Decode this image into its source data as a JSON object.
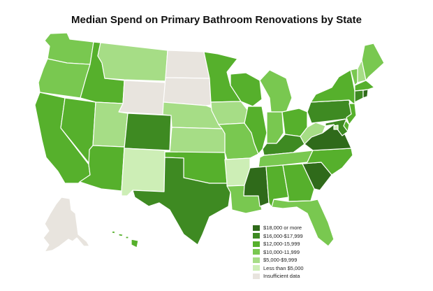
{
  "title": "Median Spend on Primary Bathroom Renovations by State",
  "colors": {
    "c18k": "#2f6a1a",
    "c16k": "#3e8a22",
    "c12k": "#56b02c",
    "c10k": "#79c850",
    "c5k": "#a6dd86",
    "c_lt5k": "#cdeeb6",
    "insufficient": "#e8e4de"
  },
  "legend": [
    {
      "key": "c18k",
      "label": "$18,000 or more"
    },
    {
      "key": "c16k",
      "label": "$16,000-$17,999"
    },
    {
      "key": "c12k",
      "label": "$12,000-15,999"
    },
    {
      "key": "c10k",
      "label": "$10,000-11,999"
    },
    {
      "key": "c5k",
      "label": "$5,000-$9,999"
    },
    {
      "key": "c_lt5k",
      "label": "Less than $5,000"
    },
    {
      "key": "insufficient",
      "label": "Insufficient data"
    }
  ],
  "states": [
    {
      "id": "WA",
      "cat": "c10k"
    },
    {
      "id": "OR",
      "cat": "c10k"
    },
    {
      "id": "CA",
      "cat": "c12k"
    },
    {
      "id": "NV",
      "cat": "c12k"
    },
    {
      "id": "ID",
      "cat": "c12k"
    },
    {
      "id": "MT",
      "cat": "c5k"
    },
    {
      "id": "WY",
      "cat": "insufficient"
    },
    {
      "id": "UT",
      "cat": "c5k"
    },
    {
      "id": "AZ",
      "cat": "c12k"
    },
    {
      "id": "CO",
      "cat": "c16k"
    },
    {
      "id": "NM",
      "cat": "c_lt5k"
    },
    {
      "id": "ND",
      "cat": "insufficient"
    },
    {
      "id": "SD",
      "cat": "insufficient"
    },
    {
      "id": "NE",
      "cat": "c5k"
    },
    {
      "id": "KS",
      "cat": "c5k"
    },
    {
      "id": "OK",
      "cat": "c12k"
    },
    {
      "id": "TX",
      "cat": "c16k"
    },
    {
      "id": "MN",
      "cat": "c12k"
    },
    {
      "id": "IA",
      "cat": "c5k"
    },
    {
      "id": "MO",
      "cat": "c10k"
    },
    {
      "id": "AR",
      "cat": "c_lt5k"
    },
    {
      "id": "LA",
      "cat": "c10k"
    },
    {
      "id": "WI",
      "cat": "c12k"
    },
    {
      "id": "IL",
      "cat": "c12k"
    },
    {
      "id": "MI",
      "cat": "c10k"
    },
    {
      "id": "IN",
      "cat": "c10k"
    },
    {
      "id": "OH",
      "cat": "c12k"
    },
    {
      "id": "KY",
      "cat": "c16k"
    },
    {
      "id": "TN",
      "cat": "c10k"
    },
    {
      "id": "MS",
      "cat": "c18k"
    },
    {
      "id": "AL",
      "cat": "c12k"
    },
    {
      "id": "GA",
      "cat": "c12k"
    },
    {
      "id": "FL",
      "cat": "c10k"
    },
    {
      "id": "SC",
      "cat": "c18k"
    },
    {
      "id": "NC",
      "cat": "c12k"
    },
    {
      "id": "VA",
      "cat": "c18k"
    },
    {
      "id": "WV",
      "cat": "c5k"
    },
    {
      "id": "PA",
      "cat": "c16k"
    },
    {
      "id": "NY",
      "cat": "c12k"
    },
    {
      "id": "VT",
      "cat": "c10k"
    },
    {
      "id": "NH",
      "cat": "c5k"
    },
    {
      "id": "ME",
      "cat": "c10k"
    },
    {
      "id": "MA",
      "cat": "c12k"
    },
    {
      "id": "CT",
      "cat": "c16k"
    },
    {
      "id": "RI",
      "cat": "c18k"
    },
    {
      "id": "NJ",
      "cat": "c12k"
    },
    {
      "id": "DE",
      "cat": "c12k"
    },
    {
      "id": "MD",
      "cat": "c16k"
    },
    {
      "id": "DC",
      "cat": "c_lt5k"
    },
    {
      "id": "AK",
      "cat": "insufficient"
    },
    {
      "id": "HI",
      "cat": "c12k"
    }
  ]
}
